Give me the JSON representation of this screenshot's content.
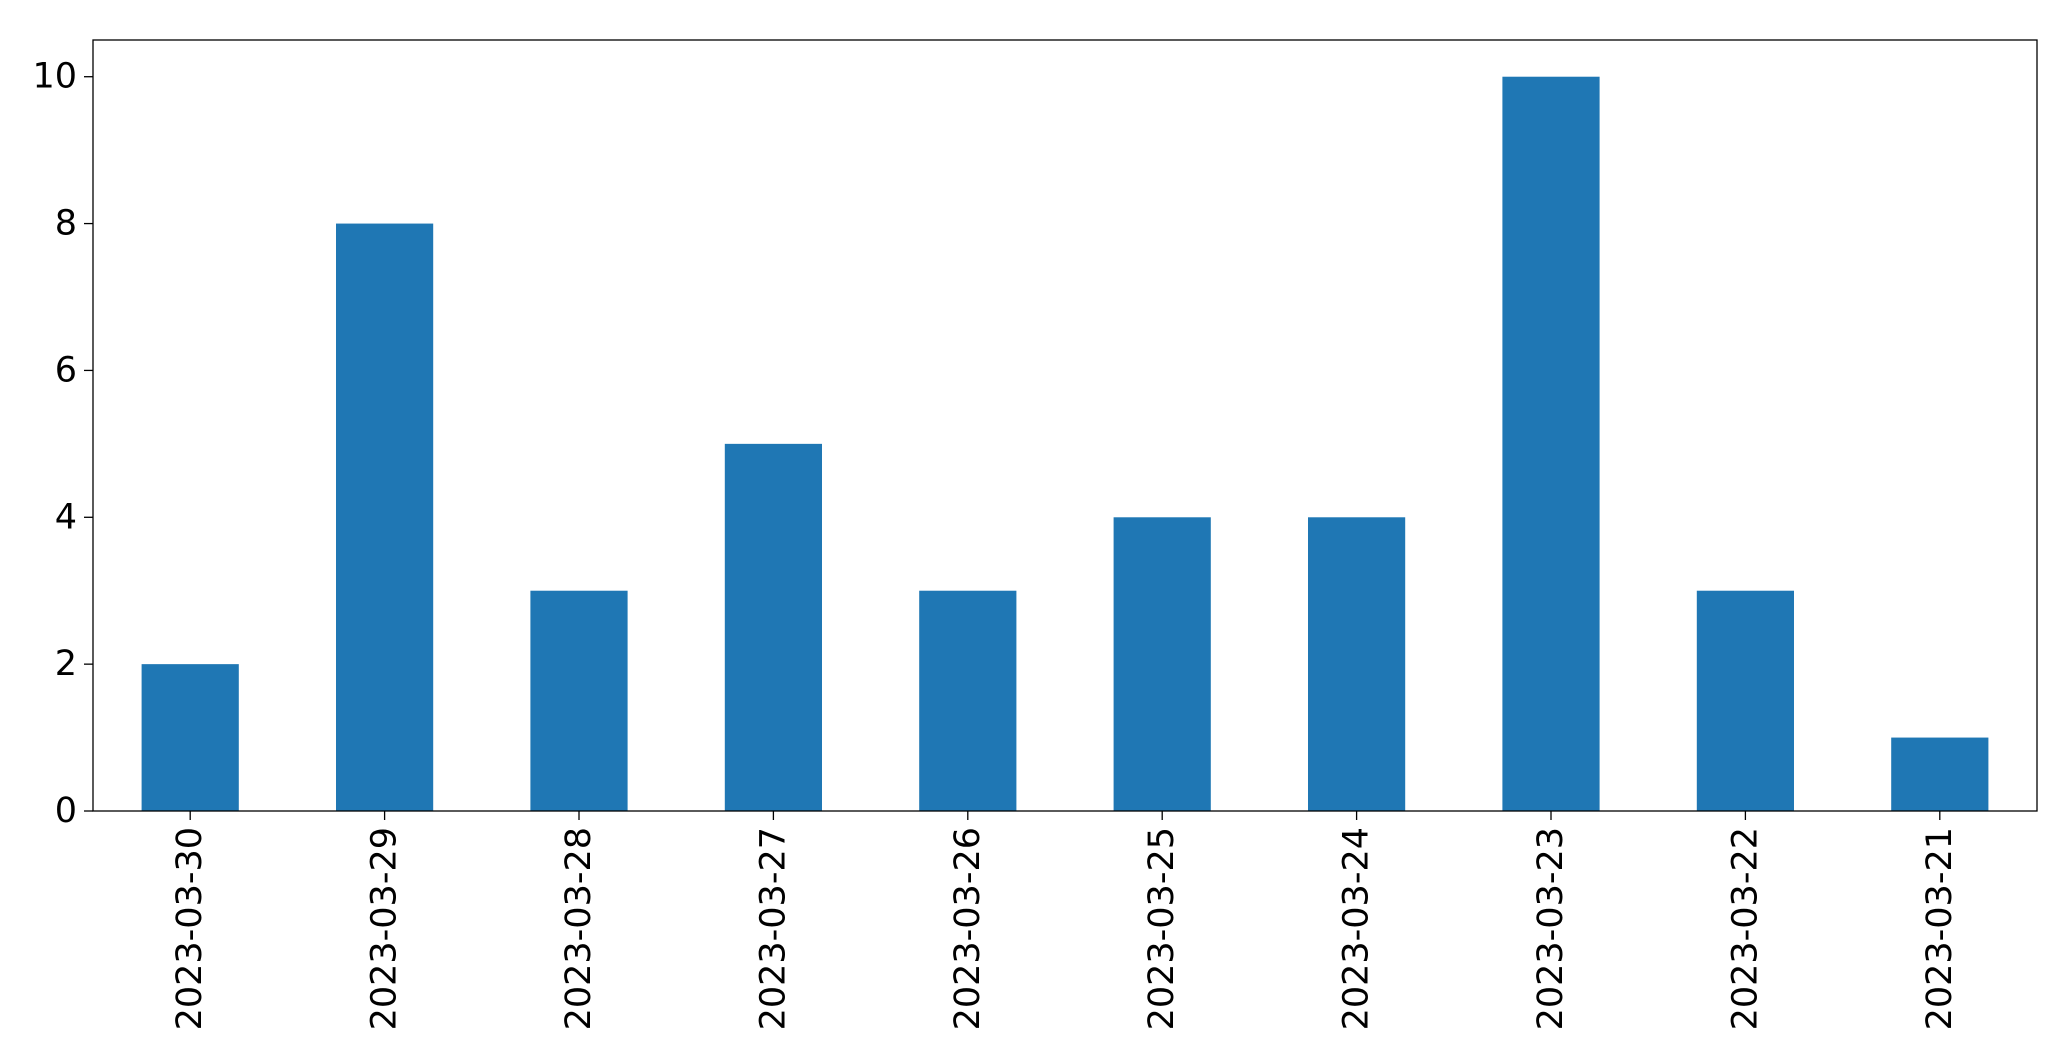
{
  "chart_data": {
    "type": "bar",
    "categories": [
      "2023-03-30",
      "2023-03-29",
      "2023-03-28",
      "2023-03-27",
      "2023-03-26",
      "2023-03-25",
      "2023-03-24",
      "2023-03-23",
      "2023-03-22",
      "2023-03-21"
    ],
    "values": [
      2,
      8,
      3,
      5,
      3,
      4,
      4,
      10,
      3,
      1
    ],
    "yticks": [
      "0",
      "2",
      "4",
      "6",
      "8",
      "10"
    ],
    "ylim": [
      0,
      10.5
    ],
    "title": "",
    "xlabel": "",
    "ylabel": "",
    "grid": false,
    "bar_color": "#1f77b4"
  }
}
